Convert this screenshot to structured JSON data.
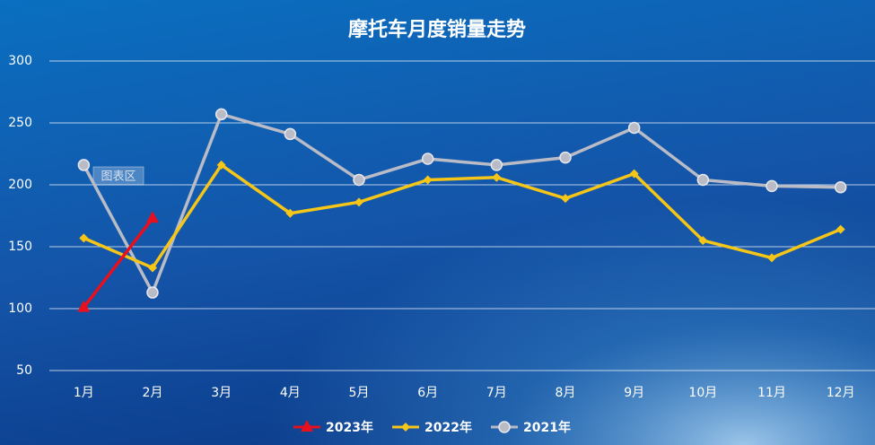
{
  "chart_data": {
    "type": "line",
    "title": "摩托车月度销量走势",
    "tooltip": "图表区",
    "categories": [
      "1月",
      "2月",
      "3月",
      "4月",
      "5月",
      "6月",
      "7月",
      "8月",
      "9月",
      "10月",
      "11月",
      "12月"
    ],
    "series": [
      {
        "name": "2023年",
        "color": "#e8101c",
        "marker": "triangle",
        "values": [
          101,
          173,
          null,
          null,
          null,
          null,
          null,
          null,
          null,
          null,
          null,
          null
        ]
      },
      {
        "name": "2022年",
        "color": "#f5c518",
        "marker": "diamond",
        "values": [
          157,
          133,
          216,
          177,
          186,
          204,
          206,
          189,
          209,
          155,
          141,
          164
        ]
      },
      {
        "name": "2021年",
        "color": "#b9bcc6",
        "marker": "circle",
        "values": [
          216,
          113,
          257,
          241,
          204,
          221,
          216,
          222,
          246,
          204,
          199,
          198
        ]
      }
    ],
    "ylim": [
      50,
      300
    ],
    "yticks": [
      50,
      100,
      150,
      200,
      250,
      300
    ],
    "grid": true,
    "legend": "bottom"
  }
}
